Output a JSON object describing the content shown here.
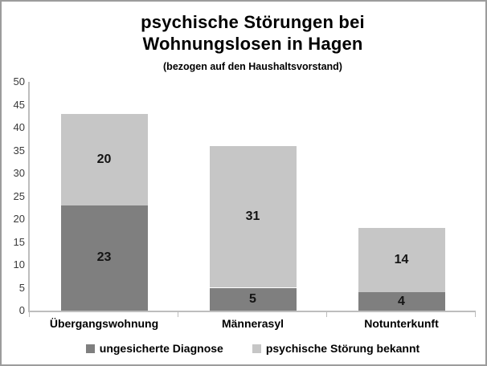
{
  "frame": {
    "border_color": "#9c9c9c",
    "background": "#ffffff"
  },
  "header": {
    "title_lines": [
      "psychische Störungen bei",
      "Wohnungslosen in Hagen"
    ],
    "subtitle": "(bezogen auf den Haushaltsvorstand)"
  },
  "chart_data": {
    "type": "bar",
    "stacked": true,
    "title": "psychische Störungen bei Wohnungslosen in Hagen",
    "subtitle": "(bezogen auf den Haushaltsvorstand)",
    "categories": [
      "Übergangswohnung",
      "Männerasyl",
      "Notunterkunft"
    ],
    "series": [
      {
        "name": "ungesicherte Diagnose",
        "color": "#7f7f7f",
        "values": [
          23,
          5,
          4
        ]
      },
      {
        "name": "psychische Störung bekannt",
        "color": "#c6c6c6",
        "values": [
          20,
          31,
          14
        ]
      }
    ],
    "totals": [
      43,
      36,
      18
    ],
    "xlabel": "",
    "ylabel": "",
    "ylim": [
      0,
      50
    ],
    "yticks": [
      0,
      5,
      10,
      15,
      20,
      25,
      30,
      35,
      40,
      45,
      50
    ],
    "grid": false,
    "data_labels": true,
    "legend_position": "bottom",
    "axis_color": "#bdbdbd",
    "label_color": "#141414"
  }
}
